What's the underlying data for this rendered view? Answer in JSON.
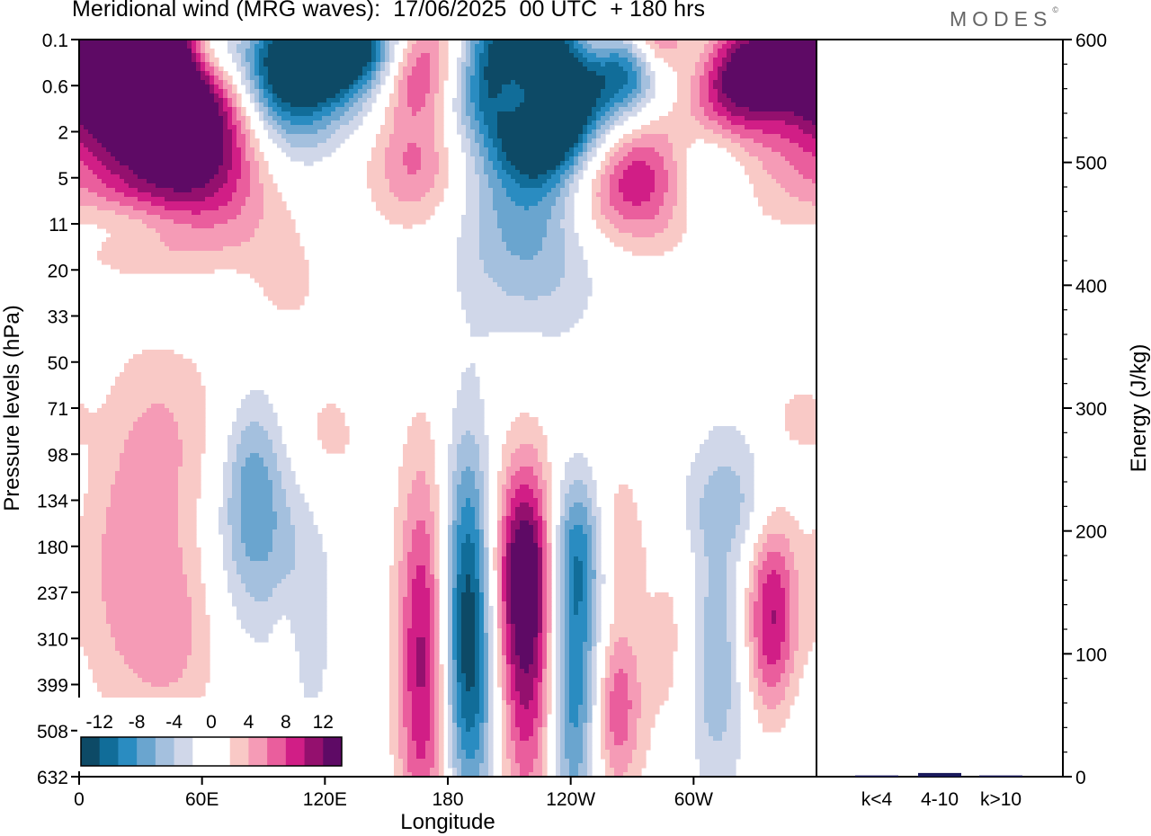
{
  "title": "Meridional wind (MRG waves):  17/06/2025  00 UTC  + 180 hrs",
  "brand": "MODES",
  "brand_mark": "©",
  "colors": {
    "neg": [
      "#0d4a66",
      "#116d99",
      "#2a8cc1",
      "#6aa5cf",
      "#a4c0de",
      "#d0d7e9"
    ],
    "pos": [
      "#f9c9c6",
      "#f59bb6",
      "#ea5e9d",
      "#d11e86",
      "#94106e",
      "#5e0a65"
    ],
    "zero": "#ffffff",
    "energy_bar": "#1a1a5c"
  },
  "chart_data": [
    {
      "type": "heatmap",
      "xlabel": "Longitude",
      "ylabel": "Pressure levels (hPa)",
      "x_ticks": [
        "0",
        "60E",
        "120E",
        "180",
        "120W",
        "60W"
      ],
      "y_ticks": [
        "0.1",
        "0.6",
        "2",
        "5",
        "11",
        "20",
        "33",
        "50",
        "71",
        "98",
        "134",
        "180",
        "237",
        "310",
        "399",
        "508",
        "632"
      ],
      "colorbar": {
        "labels": [
          "-12",
          "-8",
          "-4",
          "0",
          "4",
          "8",
          "12"
        ],
        "levels": [
          -14,
          -12,
          -10,
          -8,
          -6,
          -4,
          -2,
          2,
          4,
          6,
          8,
          10,
          12,
          14
        ]
      },
      "features": [
        {
          "lon": 40,
          "lev": 0.8,
          "value": 15,
          "rx": 40,
          "ry": 1.2
        },
        {
          "lon": 10,
          "lev": 0.2,
          "value": 15,
          "rx": 22,
          "ry": 0.8
        },
        {
          "lon": 55,
          "lev": 2.0,
          "value": 9,
          "rx": 25,
          "ry": 1.6
        },
        {
          "lon": 25,
          "lev": 3.0,
          "value": 5,
          "rx": 45,
          "ry": 1.3
        },
        {
          "lon": 100,
          "lev": 0.6,
          "value": -15,
          "rx": 30,
          "ry": 0.9
        },
        {
          "lon": 100,
          "lev": 1.6,
          "value": -8,
          "rx": 18,
          "ry": 1.5
        },
        {
          "lon": 65,
          "lev": 0.1,
          "value": -7,
          "rx": 10,
          "ry": 0.6
        },
        {
          "lon": 135,
          "lev": 0.0,
          "value": -15,
          "rx": 20,
          "ry": 0.7
        },
        {
          "lon": 170,
          "lev": 0.1,
          "value": 13,
          "rx": 22,
          "ry": 0.8
        },
        {
          "lon": 165,
          "lev": 1.0,
          "value": 5,
          "rx": 12,
          "ry": 0.6
        },
        {
          "lon": 200,
          "lev": 0.4,
          "value": -5,
          "rx": 20,
          "ry": 1.2
        },
        {
          "lon": 227,
          "lev": 0.3,
          "value": -15,
          "rx": 35,
          "ry": 1.1
        },
        {
          "lon": 225,
          "lev": 1.8,
          "value": -12,
          "rx": 16,
          "ry": 1.0
        },
        {
          "lon": 220,
          "lev": 4.0,
          "value": -7,
          "rx": 25,
          "ry": 1.6
        },
        {
          "lon": 215,
          "lev": 1.2,
          "value": 12,
          "rx": 8,
          "ry": 0.5
        },
        {
          "lon": 165,
          "lev": 2.6,
          "value": 7,
          "rx": 16,
          "ry": 1.0
        },
        {
          "lon": 255,
          "lev": 0.0,
          "value": 11,
          "rx": 15,
          "ry": 0.6
        },
        {
          "lon": 268,
          "lev": 0.4,
          "value": -11,
          "rx": 12,
          "ry": 0.7
        },
        {
          "lon": 282,
          "lev": 0.0,
          "value": 12,
          "rx": 12,
          "ry": 0.6
        },
        {
          "lon": 300,
          "lev": 0.4,
          "value": -9,
          "rx": 14,
          "ry": 0.8
        },
        {
          "lon": 315,
          "lev": 0.8,
          "value": 15,
          "rx": 20,
          "ry": 0.9
        },
        {
          "lon": 270,
          "lev": 3.0,
          "value": 11,
          "rx": 26,
          "ry": 1.0
        },
        {
          "lon": 305,
          "lev": 2.8,
          "value": -7,
          "rx": 15,
          "ry": 0.9
        },
        {
          "lon": 240,
          "lev": 2.0,
          "value": -5,
          "rx": 18,
          "ry": 0.8
        },
        {
          "lon": 97,
          "lev": 3.6,
          "value": 3,
          "rx": 20,
          "ry": 1.1
        },
        {
          "lon": 25,
          "lev": 4.0,
          "value": -3,
          "rx": 25,
          "ry": 0.4
        },
        {
          "lon": 60,
          "lev": 5.8,
          "value": -3,
          "rx": 25,
          "ry": 0.5
        },
        {
          "lon": 100,
          "lev": 5.5,
          "value": 3,
          "rx": 12,
          "ry": 0.6
        },
        {
          "lon": 45,
          "lev": 8.4,
          "value": 3,
          "rx": 20,
          "ry": 1.6
        },
        {
          "lon": 85,
          "lev": 9.3,
          "value": -4,
          "rx": 10,
          "ry": 1.3
        },
        {
          "lon": 120,
          "lev": 8.6,
          "value": 3,
          "rx": 14,
          "ry": 1.0
        },
        {
          "lon": 300,
          "lev": 9.0,
          "value": -3,
          "rx": 35,
          "ry": 1.4
        },
        {
          "lon": 275,
          "lev": 8.6,
          "value": 3,
          "rx": 25,
          "ry": 1.0
        },
        {
          "lon": 350,
          "lev": 8.2,
          "value": 3,
          "rx": 10,
          "ry": 0.6
        },
        {
          "lon": 320,
          "lev": 10.2,
          "value": -3,
          "rx": 14,
          "ry": 0.8
        },
        {
          "lon": 25,
          "lev": 11.5,
          "value": 5,
          "rx": 20,
          "ry": 2.4
        },
        {
          "lon": 50,
          "lev": 13.0,
          "value": 3,
          "rx": 15,
          "ry": 1.4
        },
        {
          "lon": 85,
          "lev": 10.8,
          "value": -5,
          "rx": 14,
          "ry": 1.6
        },
        {
          "lon": 110,
          "lev": 12.5,
          "value": -3,
          "rx": 12,
          "ry": 2.5
        },
        {
          "lon": 100,
          "lev": 13.8,
          "value": 3,
          "rx": 5,
          "ry": 1.2
        },
        {
          "lon": 168,
          "lev": 13.5,
          "value": 11,
          "rx": 9,
          "ry": 3.0
        },
        {
          "lon": 190,
          "lev": 12.2,
          "value": -13,
          "rx": 9,
          "ry": 2.5
        },
        {
          "lon": 195,
          "lev": 14.8,
          "value": -5,
          "rx": 12,
          "ry": 1.8
        },
        {
          "lon": 220,
          "lev": 13.3,
          "value": 13,
          "rx": 14,
          "ry": 2.6
        },
        {
          "lon": 218,
          "lev": 11.2,
          "value": 7,
          "rx": 10,
          "ry": 1.4
        },
        {
          "lon": 240,
          "lev": 13.5,
          "value": -14,
          "rx": 10,
          "ry": 2.6
        },
        {
          "lon": 248,
          "lev": 11.0,
          "value": -5,
          "rx": 12,
          "ry": 1.0
        },
        {
          "lon": 262,
          "lev": 10.8,
          "value": 6,
          "rx": 10,
          "ry": 1.0
        },
        {
          "lon": 262,
          "lev": 14.5,
          "value": 8,
          "rx": 9,
          "ry": 1.4
        },
        {
          "lon": 290,
          "lev": 13.0,
          "value": 3,
          "rx": 10,
          "ry": 1.8
        },
        {
          "lon": 310,
          "lev": 13.5,
          "value": -6,
          "rx": 10,
          "ry": 2.0
        },
        {
          "lon": 338,
          "lev": 12.8,
          "value": 11,
          "rx": 9,
          "ry": 1.8
        },
        {
          "lon": 340,
          "lev": 15.0,
          "value": -3,
          "rx": 12,
          "ry": 1.6
        }
      ]
    },
    {
      "type": "bar",
      "ylabel": "Energy (J/kg)",
      "categories": [
        "k<4",
        "4-10",
        "k>10"
      ],
      "values": [
        1,
        3,
        1
      ],
      "y_ticks": [
        "0",
        "100",
        "200",
        "300",
        "400",
        "500",
        "600"
      ],
      "ylim": [
        0,
        600
      ]
    }
  ]
}
